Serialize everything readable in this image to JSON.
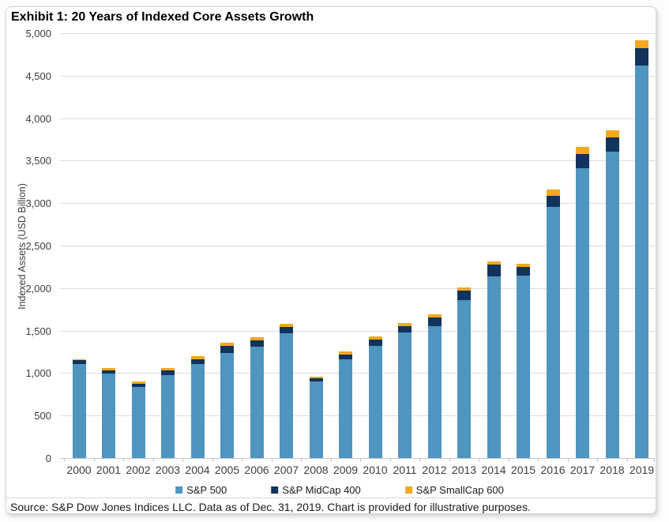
{
  "header": {
    "title": "Exhibit 1: 20 Years of Indexed Core Assets Growth"
  },
  "chart_data": {
    "type": "bar",
    "stacked": true,
    "title": "Exhibit 1: 20 Years of Indexed Core Assets Growth",
    "xlabel": "",
    "ylabel": "Indexed Assets (USD Billion)",
    "ylim": [
      0,
      5000
    ],
    "ytick_step": 500,
    "ytick_labels": [
      "0",
      "500",
      "1,000",
      "1,500",
      "2,000",
      "2,500",
      "3,000",
      "3,500",
      "4,000",
      "4,500",
      "5,000"
    ],
    "grid": "horizontal",
    "legend_position": "bottom",
    "categories": [
      "2000",
      "2001",
      "2002",
      "2003",
      "2004",
      "2005",
      "2006",
      "2007",
      "2008",
      "2009",
      "2010",
      "2011",
      "2012",
      "2013",
      "2014",
      "2015",
      "2016",
      "2017",
      "2018",
      "2019"
    ],
    "series": [
      {
        "name": "S&P 500",
        "color": "#4E95C0",
        "values": [
          1110,
          995,
          835,
          980,
          1105,
          1240,
          1310,
          1470,
          905,
          1165,
          1320,
          1475,
          1550,
          1860,
          2140,
          2150,
          2960,
          3410,
          3610,
          4620
        ]
      },
      {
        "name": "S&P MidCap 400",
        "color": "#12335C",
        "values": [
          45,
          35,
          40,
          55,
          55,
          80,
          75,
          75,
          40,
          55,
          75,
          70,
          100,
          110,
          135,
          100,
          130,
          165,
          170,
          200
        ]
      },
      {
        "name": "S&P SmallCap 600",
        "color": "#F5A81C",
        "values": [
          10,
          30,
          25,
          30,
          40,
          35,
          40,
          40,
          15,
          35,
          35,
          40,
          40,
          35,
          40,
          40,
          70,
          85,
          85,
          95
        ]
      }
    ],
    "totals": [
      1165,
      1060,
      900,
      1065,
      1200,
      1355,
      1425,
      1585,
      960,
      1255,
      1430,
      1585,
      1690,
      2005,
      2315,
      2290,
      3160,
      3660,
      3865,
      4915
    ]
  },
  "footer": {
    "source": "Source: S&P Dow Jones Indices LLC. Data as of Dec. 31, 2019. Chart is provided for illustrative purposes."
  },
  "colors": {
    "grid": "#dcdcdc",
    "axis": "#c6c6c6",
    "tick_text": "#3d3d3d",
    "title_text": "#000000",
    "card_border": "#d5d5d5"
  }
}
